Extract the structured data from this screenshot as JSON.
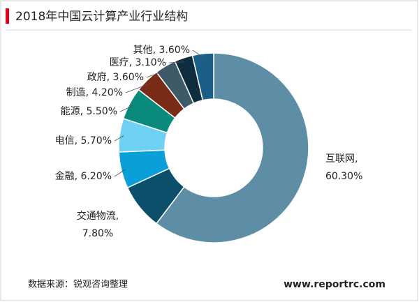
{
  "chart_data": {
    "type": "pie",
    "donut": true,
    "title": "2018年中国云计算产业行业结构",
    "values": [
      60.3,
      7.8,
      6.2,
      5.7,
      5.5,
      4.2,
      3.6,
      3.1,
      3.6
    ],
    "value_labels": [
      "互联网, 60.30%",
      "交通物流, 7.80%",
      "金融, 6.20%",
      "电信, 5.70%",
      "能源, 5.50%",
      "制造, 4.20%",
      "政府, 3.60%",
      "医疗, 3.10%",
      "其他, 3.60%"
    ],
    "colors": [
      "#5d8ea6",
      "#0c4f6b",
      "#0a9fd8",
      "#6ed0f4",
      "#0a8a7c",
      "#7a2b17",
      "#3e5a69",
      "#0f2d3f",
      "#1b5f86"
    ],
    "source": "数据来源：锐观咨询整理",
    "website": "www.reportrc.com"
  }
}
